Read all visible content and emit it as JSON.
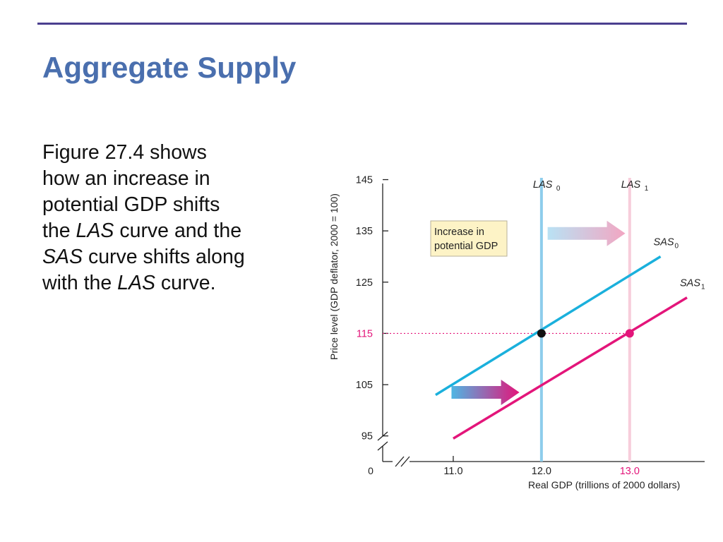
{
  "slide": {
    "title": "Aggregate Supply",
    "body": {
      "line1": "Figure 27.4 shows",
      "line2": "how an increase in",
      "line3": "potential GDP shifts",
      "line4_pre": "the ",
      "line4_em": "LAS",
      "line4_post": " curve and the",
      "line5_em": "SAS",
      "line5_post": " curve shifts along",
      "line6_pre": "with the ",
      "line6_em": "LAS",
      "line6_post": " curve."
    }
  },
  "colors": {
    "title": "#4a6fae",
    "rule": "#4b3f8f",
    "las0": "#8ecdec",
    "las1": "#f7cddb",
    "sas0": "#1ab0dc",
    "sas1": "#e3157a",
    "dotted": "#e3157a",
    "annotation_bg": "#fdf3c6"
  },
  "chart_data": {
    "type": "line",
    "ylabel": "Price level (GDP deflator, 2000 = 100)",
    "xlabel": "Real GDP (trillions of 2000 dollars)",
    "origin_label": "0",
    "x_ticks": [
      {
        "value": 11.0,
        "label": "11.0"
      },
      {
        "value": 12.0,
        "label": "12.0"
      },
      {
        "value": 13.0,
        "label": "13.0",
        "highlight": true
      }
    ],
    "y_ticks": [
      {
        "value": 95,
        "label": "95"
      },
      {
        "value": 105,
        "label": "105"
      },
      {
        "value": 115,
        "label": "115",
        "highlight": true
      },
      {
        "value": 125,
        "label": "125"
      },
      {
        "value": 135,
        "label": "135"
      },
      {
        "value": 145,
        "label": "145"
      }
    ],
    "xlim": [
      10.2,
      13.85
    ],
    "ylim": [
      90,
      147
    ],
    "las": [
      {
        "name": "LAS",
        "subscript": "0",
        "x": 12.0
      },
      {
        "name": "LAS",
        "subscript": "1",
        "x": 13.0
      }
    ],
    "sas": [
      {
        "name": "SAS",
        "subscript": "0",
        "points": [
          [
            10.8,
            103
          ],
          [
            13.35,
            130
          ]
        ]
      },
      {
        "name": "SAS",
        "subscript": "1",
        "points": [
          [
            11.0,
            94.5
          ],
          [
            13.65,
            122
          ]
        ]
      }
    ],
    "equilibria": [
      {
        "x": 12.0,
        "y": 115
      },
      {
        "x": 13.0,
        "y": 115
      }
    ],
    "reference_line_y": 115,
    "annotation": {
      "line1": "Increase in",
      "line2": "potential GDP"
    },
    "shift_arrows": [
      {
        "from": [
          12.07,
          134.5
        ],
        "to": [
          12.95,
          134.5
        ]
      },
      {
        "from": [
          10.98,
          103.5
        ],
        "to": [
          11.75,
          103.5
        ]
      }
    ]
  }
}
